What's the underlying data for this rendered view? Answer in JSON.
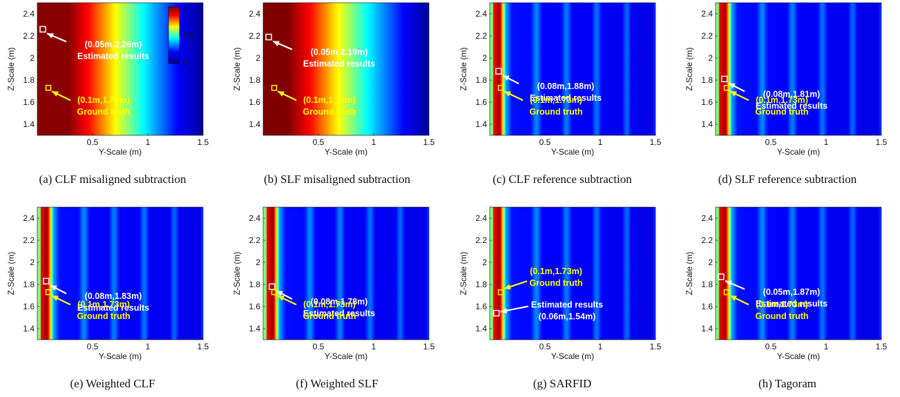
{
  "chart_data": [
    {
      "type": "heatmap",
      "caption": "(a) CLF misaligned subtraction",
      "xlabel": "Y-Scale (m)",
      "ylabel": "Z-Scale (m)",
      "xlim": [
        0,
        1.5
      ],
      "ylim": [
        1.3,
        2.5
      ],
      "xticks": [
        "0.5",
        "1",
        "1.5"
      ],
      "yticks": [
        "1.4",
        "1.6",
        "1.8",
        "2",
        "2.2",
        "2.4"
      ],
      "pattern": "gradient",
      "colorbar": {
        "ticks": [
          "1",
          "0.5",
          "0"
        ]
      },
      "estimated": {
        "y": 0.05,
        "z": 2.26,
        "label": "(0.05m,2.26m)",
        "text": "Estimated results"
      },
      "ground_truth": {
        "y": 0.1,
        "z": 1.73,
        "label": "(0.1m,1.73m)",
        "text": "Ground truth"
      }
    },
    {
      "type": "heatmap",
      "caption": "(b) SLF misaligned subtraction",
      "xlabel": "Y-Scale (m)",
      "ylabel": "Z-Scale (m)",
      "xlim": [
        0,
        1.5
      ],
      "ylim": [
        1.3,
        2.5
      ],
      "xticks": [
        "0.5",
        "1",
        "1.5"
      ],
      "yticks": [
        "1.4",
        "1.6",
        "1.8",
        "2",
        "2.2",
        "2.4"
      ],
      "pattern": "gradient",
      "estimated": {
        "y": 0.05,
        "z": 2.19,
        "label": "(0.05m,2.19m)",
        "text": "Estimated results"
      },
      "ground_truth": {
        "y": 0.1,
        "z": 1.73,
        "label": "(0.1m,1.73m)",
        "text": "Ground truth"
      }
    },
    {
      "type": "heatmap",
      "caption": "(c) CLF reference subtraction",
      "xlabel": "Y-Scale (m)",
      "ylabel": "Z-Scale (m)",
      "xlim": [
        0,
        1.5
      ],
      "ylim": [
        1.3,
        2.5
      ],
      "xticks": [
        "0.5",
        "1",
        "1.5"
      ],
      "yticks": [
        "1.4",
        "1.6",
        "1.8",
        "2",
        "2.2",
        "2.4"
      ],
      "pattern": "stripes",
      "estimated": {
        "y": 0.08,
        "z": 1.88,
        "label": "(0.08m,1.88m)",
        "text": "Estimated results"
      },
      "ground_truth": {
        "y": 0.1,
        "z": 1.73,
        "label": "(0.1m,1.73m)",
        "text": "Ground truth"
      }
    },
    {
      "type": "heatmap",
      "caption": "(d) SLF reference subtraction",
      "xlabel": "Y-Scale (m)",
      "ylabel": "Z-Scale (m)",
      "xlim": [
        0,
        1.5
      ],
      "ylim": [
        1.3,
        2.5
      ],
      "xticks": [
        "0.5",
        "1",
        "1.5"
      ],
      "yticks": [
        "1.4",
        "1.6",
        "1.8",
        "2",
        "2.2",
        "2.4"
      ],
      "pattern": "stripes",
      "estimated": {
        "y": 0.08,
        "z": 1.81,
        "label": "(0.08m,1.81m)",
        "text": "Estimated results"
      },
      "ground_truth": {
        "y": 0.1,
        "z": 1.73,
        "label": "(0.1m,1.73m)",
        "text": "Ground truth"
      }
    },
    {
      "type": "heatmap",
      "caption": "(e) Weighted CLF",
      "xlabel": "Y-Scale (m)",
      "ylabel": "Z-Scale (m)",
      "xlim": [
        0,
        1.5
      ],
      "ylim": [
        1.3,
        2.5
      ],
      "xticks": [
        "0.5",
        "1",
        "1.5"
      ],
      "yticks": [
        "1.4",
        "1.6",
        "1.8",
        "2",
        "2.2",
        "2.4"
      ],
      "pattern": "stripes",
      "estimated": {
        "y": 0.08,
        "z": 1.83,
        "label": "(0.08m,1.83m)",
        "text": "Estimated results"
      },
      "ground_truth": {
        "y": 0.1,
        "z": 1.73,
        "label": "(0.1m,1.73m)",
        "text": "Ground truth"
      }
    },
    {
      "type": "heatmap",
      "caption": "(f) Weighted SLF",
      "xlabel": "Y-Scale (m)",
      "ylabel": "Z-Scale (m)",
      "xlim": [
        0,
        1.5
      ],
      "ylim": [
        1.3,
        2.5
      ],
      "xticks": [
        "0.5",
        "1",
        "1.5"
      ],
      "yticks": [
        "1.4",
        "1.6",
        "1.8",
        "2",
        "2.2",
        "2.4"
      ],
      "pattern": "stripes",
      "estimated": {
        "y": 0.08,
        "z": 1.78,
        "label": "(0.08m,1.78m)",
        "text": "Estimated results"
      },
      "ground_truth": {
        "y": 0.1,
        "z": 1.73,
        "label": "(0.1m,1.73m)",
        "text": "Ground truth"
      }
    },
    {
      "type": "heatmap",
      "caption": "(g) SARFID",
      "xlabel": "Y-Scale (m)",
      "ylabel": "Z-Scale (m)",
      "xlim": [
        0,
        1.5
      ],
      "ylim": [
        1.3,
        2.5
      ],
      "xticks": [
        "0.5",
        "1",
        "1.5"
      ],
      "yticks": [
        "1.4",
        "1.6",
        "1.8",
        "2",
        "2.2",
        "2.4"
      ],
      "pattern": "stripes",
      "estimated": {
        "y": 0.06,
        "z": 1.54,
        "label": "(0.06m,1.54m)",
        "text": "Estimated results"
      },
      "ground_truth": {
        "y": 0.1,
        "z": 1.73,
        "label": "(0.1m,1.73m)",
        "text": "Ground truth"
      }
    },
    {
      "type": "heatmap",
      "caption": "(h) Tagoram",
      "xlabel": "Y-Scale (m)",
      "ylabel": "Z-Scale (m)",
      "xlim": [
        0,
        1.5
      ],
      "ylim": [
        1.3,
        2.5
      ],
      "xticks": [
        "0.5",
        "1",
        "1.5"
      ],
      "yticks": [
        "1.4",
        "1.6",
        "1.8",
        "2",
        "2.2",
        "2.4"
      ],
      "pattern": "stripes",
      "estimated": {
        "y": 0.05,
        "z": 1.87,
        "label": "(0.05m,1.87m)",
        "text": "Estimated results"
      },
      "ground_truth": {
        "y": 0.1,
        "z": 1.73,
        "label": "(0.1m,1.73m)",
        "text": "Ground truth"
      }
    }
  ],
  "colors": {
    "estimated_marker": "#ffffff",
    "ground_truth_marker": "#ffff00",
    "colormap": [
      "#00008f",
      "#0000ff",
      "#00ffff",
      "#ffff00",
      "#ff0000",
      "#800000"
    ]
  }
}
